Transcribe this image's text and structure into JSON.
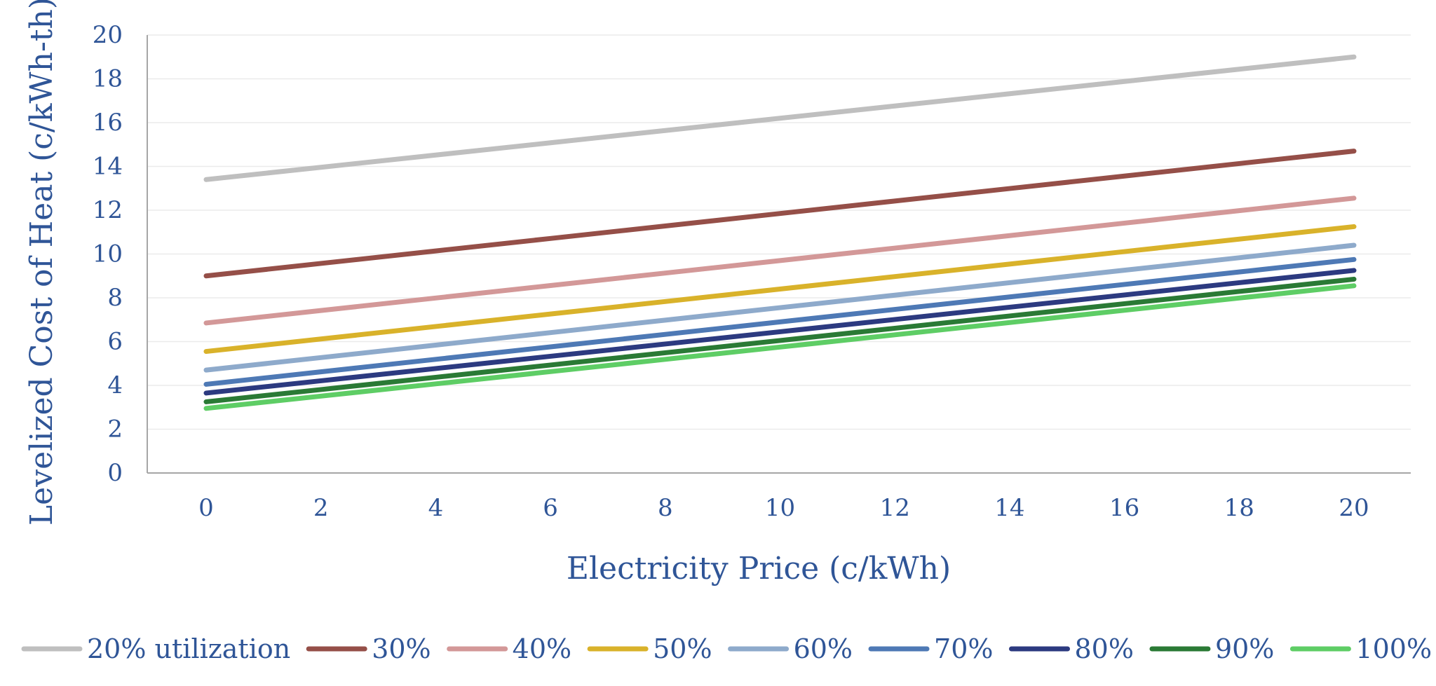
{
  "chart_data": {
    "type": "line",
    "title": "",
    "xlabel": "Electricity Price (c/kWh)",
    "ylabel": "Levelized Cost of Heat (c/kWh-th)",
    "x": [
      0,
      2,
      4,
      6,
      8,
      10,
      12,
      14,
      16,
      18,
      20
    ],
    "xlim": [
      0,
      20
    ],
    "ylim": [
      0,
      20
    ],
    "xticks": [
      0,
      2,
      4,
      6,
      8,
      10,
      12,
      14,
      16,
      18,
      20
    ],
    "yticks": [
      0,
      2,
      4,
      6,
      8,
      10,
      12,
      14,
      16,
      18,
      20
    ],
    "grid": "horizontal",
    "legend": "bottom",
    "series": [
      {
        "name": "20% utilization",
        "color": "#bfbfbf",
        "values": [
          13.4,
          13.96,
          14.52,
          15.08,
          15.64,
          16.2,
          16.76,
          17.32,
          17.88,
          18.44,
          19.0
        ]
      },
      {
        "name": "30%",
        "color": "#954f48",
        "values": [
          9.0,
          9.57,
          10.14,
          10.71,
          11.28,
          11.85,
          12.42,
          12.99,
          13.56,
          14.13,
          14.7
        ]
      },
      {
        "name": "40%",
        "color": "#d39898",
        "values": [
          6.85,
          7.42,
          7.99,
          8.56,
          9.13,
          9.7,
          10.27,
          10.84,
          11.41,
          11.98,
          12.55
        ]
      },
      {
        "name": "50%",
        "color": "#d9b22a",
        "values": [
          5.55,
          6.12,
          6.69,
          7.26,
          7.83,
          8.4,
          8.97,
          9.54,
          10.11,
          10.68,
          11.25
        ]
      },
      {
        "name": "60%",
        "color": "#8eaacb",
        "values": [
          4.7,
          5.27,
          5.84,
          6.41,
          6.98,
          7.55,
          8.12,
          8.69,
          9.26,
          9.83,
          10.4
        ]
      },
      {
        "name": "70%",
        "color": "#4e79b5",
        "values": [
          4.05,
          4.62,
          5.19,
          5.76,
          6.33,
          6.9,
          7.47,
          8.04,
          8.61,
          9.18,
          9.75
        ]
      },
      {
        "name": "80%",
        "color": "#2c3a80",
        "values": [
          3.65,
          4.21,
          4.77,
          5.33,
          5.89,
          6.45,
          7.01,
          7.57,
          8.13,
          8.69,
          9.25
        ]
      },
      {
        "name": "90%",
        "color": "#2a7a35",
        "values": [
          3.25,
          3.81,
          4.37,
          4.93,
          5.49,
          6.05,
          6.61,
          7.17,
          7.73,
          8.29,
          8.85
        ]
      },
      {
        "name": "100%",
        "color": "#5ecd65",
        "values": [
          2.95,
          3.51,
          4.07,
          4.63,
          5.19,
          5.75,
          6.31,
          6.87,
          7.43,
          7.99,
          8.55
        ]
      }
    ]
  }
}
